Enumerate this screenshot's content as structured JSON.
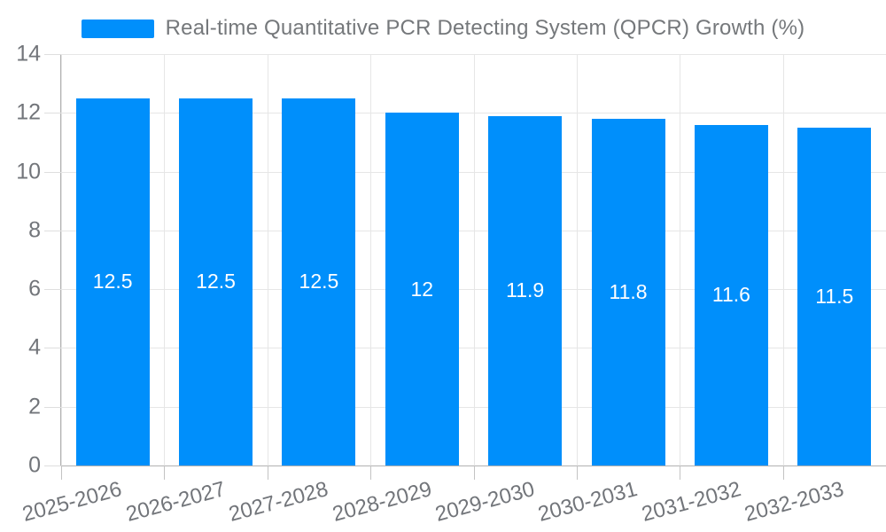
{
  "chart_data": {
    "type": "bar",
    "title": "",
    "legend": "Real-time Quantitative PCR Detecting System (QPCR) Growth (%)",
    "legend_position": "top",
    "categories": [
      "2025-2026",
      "2026-2027",
      "2027-2028",
      "2028-2029",
      "2029-2030",
      "2030-2031",
      "2031-2032",
      "2032-2033"
    ],
    "values": [
      12.5,
      12.5,
      12.5,
      12,
      11.9,
      11.8,
      11.6,
      11.5
    ],
    "data_labels": [
      "12.5",
      "12.5",
      "12.5",
      "12",
      "11.9",
      "11.8",
      "11.6",
      "11.5"
    ],
    "xlabel": "",
    "ylabel": "",
    "ylim": [
      0,
      14
    ],
    "yticks": [
      0,
      2,
      4,
      6,
      8,
      10,
      12,
      14
    ],
    "grid": "both",
    "colors": {
      "bar": "#008FFB",
      "grid": "#e6e6e6",
      "axis": "#b1b1b1",
      "axis_label": "#72757a",
      "legend_text": "#75787b",
      "data_label": "#ffffff",
      "background": "#ffffff"
    }
  }
}
